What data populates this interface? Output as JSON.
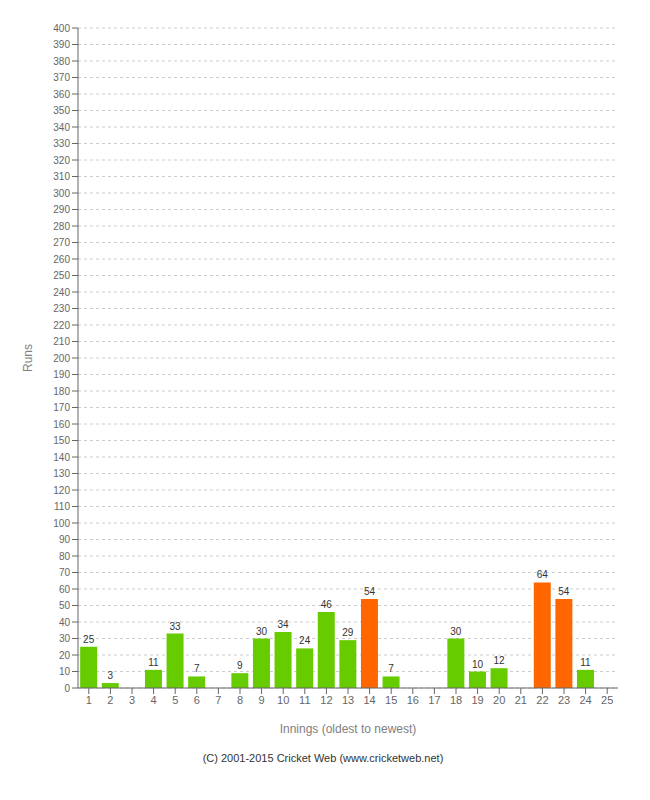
{
  "chart_data": {
    "type": "bar",
    "categories": [
      "1",
      "2",
      "3",
      "4",
      "5",
      "6",
      "7",
      "8",
      "9",
      "10",
      "11",
      "12",
      "13",
      "14",
      "15",
      "16",
      "17",
      "18",
      "19",
      "20",
      "21",
      "22",
      "23",
      "24",
      "25"
    ],
    "values": [
      25,
      3,
      0,
      11,
      33,
      7,
      0,
      9,
      30,
      34,
      24,
      46,
      29,
      54,
      7,
      0,
      0,
      30,
      10,
      12,
      0,
      64,
      54,
      11,
      0
    ],
    "colors": [
      "#66cc00",
      "#66cc00",
      "#66cc00",
      "#66cc00",
      "#66cc00",
      "#66cc00",
      "#66cc00",
      "#66cc00",
      "#66cc00",
      "#66cc00",
      "#66cc00",
      "#66cc00",
      "#66cc00",
      "#ff6600",
      "#66cc00",
      "#66cc00",
      "#66cc00",
      "#66cc00",
      "#66cc00",
      "#66cc00",
      "#66cc00",
      "#ff6600",
      "#ff6600",
      "#66cc00",
      "#66cc00"
    ],
    "xlabel": "Innings (oldest to newest)",
    "ylabel": "Runs",
    "ylim": [
      0,
      400
    ],
    "yticks": [
      0,
      10,
      20,
      30,
      40,
      50,
      60,
      70,
      80,
      90,
      100,
      110,
      120,
      130,
      140,
      150,
      160,
      170,
      180,
      190,
      200,
      210,
      220,
      230,
      240,
      250,
      260,
      270,
      280,
      290,
      300,
      310,
      320,
      330,
      340,
      350,
      360,
      370,
      380,
      390,
      400
    ],
    "grid": true,
    "data_labels": true,
    "annotations": [
      "(C) 2001-2015 Cricket Web (www.cricketweb.net)"
    ]
  }
}
